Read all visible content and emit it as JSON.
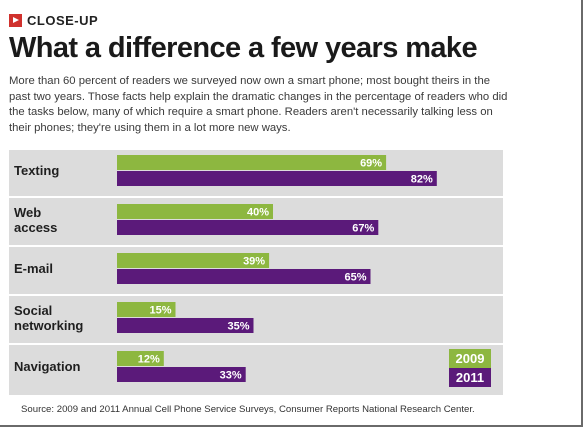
{
  "section": {
    "label": "CLOSE-UP",
    "icon": "arrow-right-icon"
  },
  "headline": "What a difference a few years make",
  "intro": "More than 60 percent of readers we surveyed now own a smart phone; most bought theirs in the past two years. Those facts help explain the dramatic changes in the percentage of readers who did the tasks below, many of which require a smart phone. Readers aren't necessarily talking less on their phones; they're using them in a lot more new ways.",
  "chart_data": {
    "type": "bar",
    "orientation": "horizontal",
    "categories": [
      "Texting",
      "Web\naccess",
      "E-mail",
      "Social\nnetworking",
      "Navigation"
    ],
    "series": [
      {
        "name": "2009",
        "color": "#8db740",
        "values": [
          69,
          40,
          39,
          15,
          12
        ]
      },
      {
        "name": "2011",
        "color": "#5b1a7a",
        "values": [
          82,
          67,
          65,
          35,
          33
        ]
      }
    ],
    "value_suffix": "%",
    "legend": [
      "2009",
      "2011"
    ],
    "legend_position": "bottom-right",
    "grid": false
  },
  "source": "Source: 2009 and 2011 Annual Cell Phone Service Surveys, Consumer Reports National Research Center.",
  "colors": {
    "panel": "#dcdcdc",
    "green": "#8db740",
    "purple": "#5b1a7a",
    "tag": "#d0312d"
  }
}
